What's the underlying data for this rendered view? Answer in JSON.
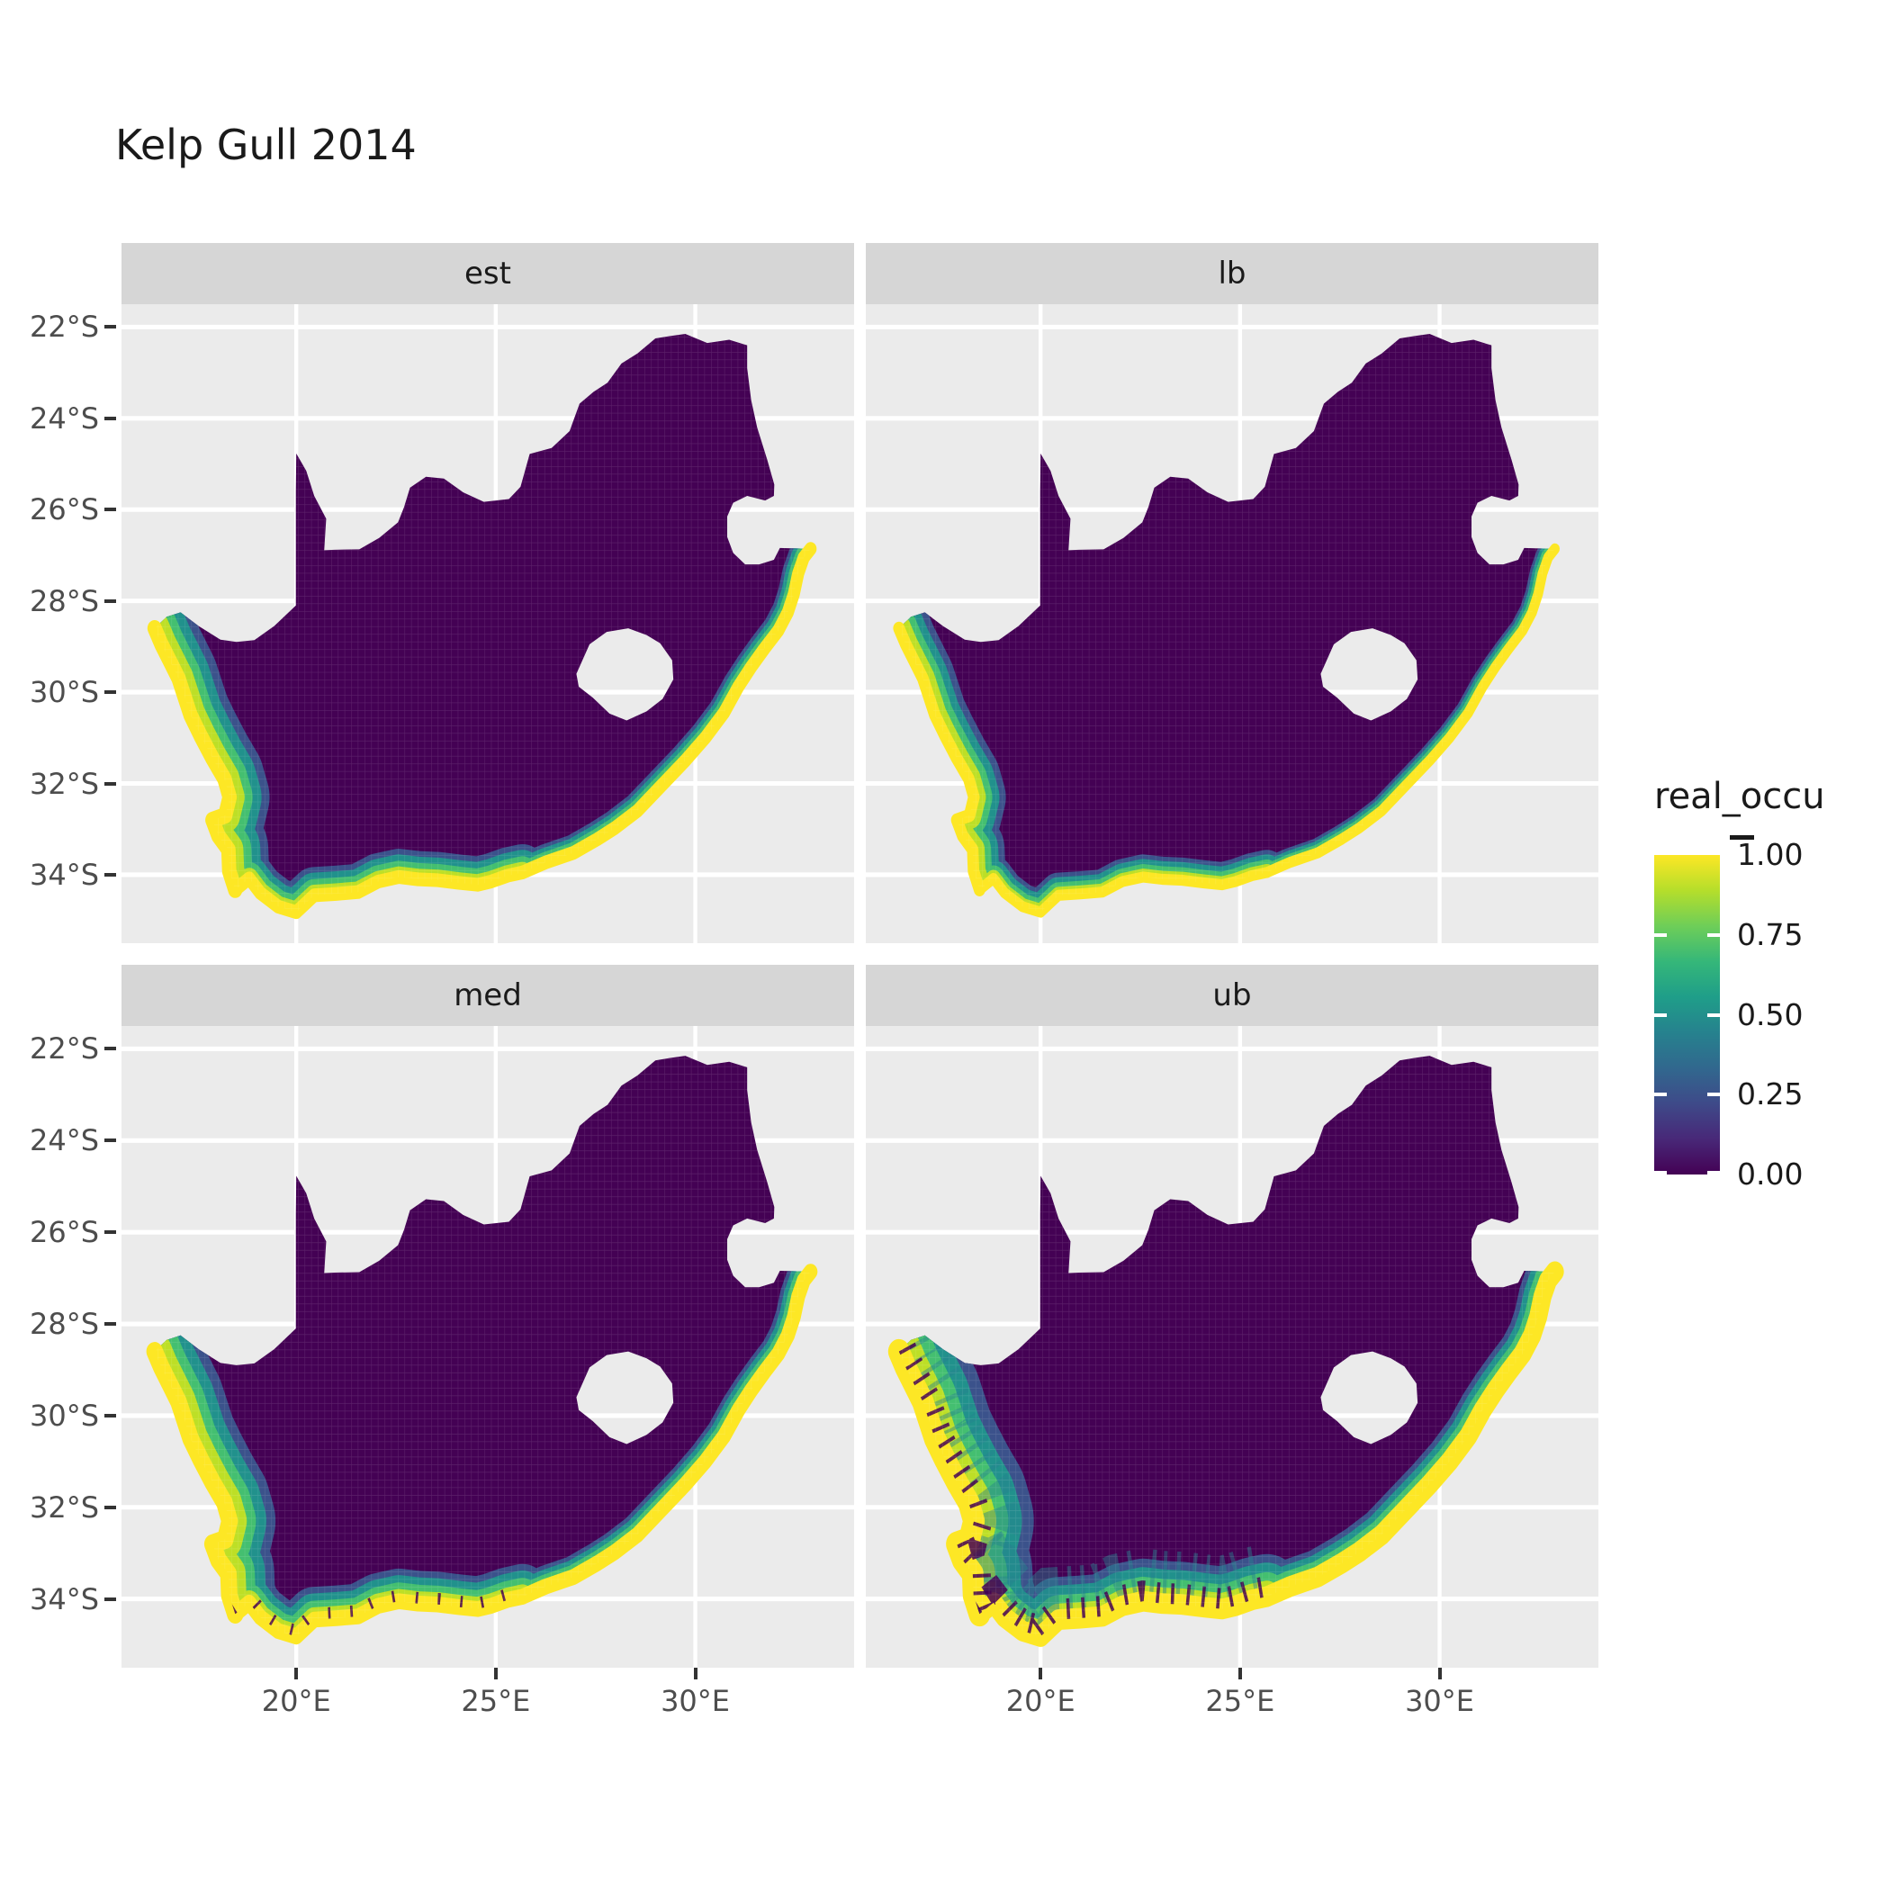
{
  "title": "Kelp Gull 2014",
  "facets": [
    {
      "label": "est",
      "band_scale": 1.0,
      "speckle": "none"
    },
    {
      "label": "lb",
      "band_scale": 0.8,
      "speckle": "none"
    },
    {
      "label": "med",
      "band_scale": 1.15,
      "speckle": "light"
    },
    {
      "label": "ub",
      "band_scale": 1.5,
      "speckle": "heavy"
    }
  ],
  "y_axis": {
    "labels": [
      "22°S",
      "24°S",
      "26°S",
      "28°S",
      "30°S",
      "32°S",
      "34°S"
    ],
    "values": [
      22,
      24,
      26,
      28,
      30,
      32,
      34
    ]
  },
  "x_axis": {
    "labels": [
      "20°E",
      "25°E",
      "30°E"
    ],
    "values": [
      20,
      25,
      30
    ]
  },
  "legend": {
    "title": "real_occu",
    "labels": [
      "1.00",
      "0.75",
      "0.50",
      "0.25",
      "0.00"
    ],
    "positions": [
      1.0,
      0.75,
      0.5,
      0.25,
      0.0
    ],
    "side_tick_positions": [
      0.75,
      0.5,
      0.25,
      0.005
    ],
    "gradient": [
      "#440154",
      "#482878",
      "#3e4a89",
      "#31688e",
      "#26828e",
      "#1f9e89",
      "#35b779",
      "#6ece58",
      "#b5de2b",
      "#fde725"
    ]
  },
  "colors": {
    "panel_bg": "#ebebeb",
    "strip_bg": "#d6d6d6",
    "grid": "#ffffff",
    "axis_text": "#4d4d4d",
    "tick_mark": "#333333",
    "land_fill": "#440154",
    "cell_line": "rgba(255,255,255,0.13)",
    "band_layers": [
      "#3b528b",
      "#21918c",
      "#44bf70",
      "#bddf26"
    ],
    "band_top": "#fde725",
    "speckle_teal": "#26828e"
  },
  "chart_data": {
    "type": "heatmap",
    "title": "Kelp Gull 2014",
    "facet_variable_values": [
      "est",
      "lb",
      "med",
      "ub"
    ],
    "legend_variable": "real_occu",
    "value_range": [
      0,
      1
    ],
    "legend_breaks": [
      0,
      0.25,
      0.5,
      0.75,
      1.0
    ],
    "palette": "viridis",
    "region": "South Africa (Lesotho hole and Eswatini notch excluded)",
    "x_axis_range_lon_e": [
      15.62,
      33.98
    ],
    "y_axis_range_lat": [
      -35.5,
      -21.5
    ],
    "grid_lon_lines": [
      20,
      25,
      30
    ],
    "grid_lat_lines": [
      -22,
      -24,
      -26,
      -28,
      -30,
      -32,
      -34
    ],
    "raster_cell_size_deg": 0.167,
    "pattern": {
      "interior_value": 0.0,
      "coastal_value": 1.0,
      "description": "Occupancy near 1 (yellow) in a band along the coast, grading inland through green, teal and blue to near 0 (dark purple) across the whole interior; band widest on the west coast and around the Cape, thinnest on the east coast.",
      "facet_band_scale": {
        "est": 1.0,
        "lb": 0.8,
        "med": 1.15,
        "ub": 1.5
      },
      "segment_inland_extent_deg": {
        "west": 1.0,
        "south": 0.62,
        "east": 0.4
      },
      "speckled_facets": [
        "med",
        "ub"
      ]
    },
    "coast_end_index": 49,
    "coast_segments": {
      "west": [
        0,
        15
      ],
      "south": [
        15,
        31
      ],
      "east": [
        31,
        49
      ]
    },
    "outline": [
      [
        16.45,
        -28.6
      ],
      [
        16.62,
        -28.95
      ],
      [
        16.85,
        -29.35
      ],
      [
        17.05,
        -29.7
      ],
      [
        17.2,
        -30.1
      ],
      [
        17.35,
        -30.5
      ],
      [
        17.6,
        -30.95
      ],
      [
        17.9,
        -31.45
      ],
      [
        18.2,
        -31.9
      ],
      [
        18.33,
        -32.3
      ],
      [
        18.22,
        -32.7
      ],
      [
        17.9,
        -32.8
      ],
      [
        18.05,
        -33.15
      ],
      [
        18.3,
        -33.45
      ],
      [
        18.32,
        -33.92
      ],
      [
        18.47,
        -34.33
      ],
      [
        18.82,
        -34.08
      ],
      [
        19.1,
        -34.4
      ],
      [
        19.55,
        -34.7
      ],
      [
        20.0,
        -34.82
      ],
      [
        20.45,
        -34.45
      ],
      [
        21.0,
        -34.42
      ],
      [
        21.55,
        -34.38
      ],
      [
        22.05,
        -34.15
      ],
      [
        22.57,
        -34.05
      ],
      [
        23.05,
        -34.1
      ],
      [
        23.55,
        -34.12
      ],
      [
        24.1,
        -34.18
      ],
      [
        24.55,
        -34.22
      ],
      [
        24.88,
        -34.15
      ],
      [
        25.3,
        -34.02
      ],
      [
        25.67,
        -33.95
      ],
      [
        26.25,
        -33.73
      ],
      [
        26.95,
        -33.52
      ],
      [
        27.55,
        -33.22
      ],
      [
        27.98,
        -32.98
      ],
      [
        28.55,
        -32.6
      ],
      [
        29.15,
        -32.05
      ],
      [
        29.75,
        -31.5
      ],
      [
        30.25,
        -31.0
      ],
      [
        30.72,
        -30.45
      ],
      [
        31.08,
        -29.88
      ],
      [
        31.4,
        -29.45
      ],
      [
        31.73,
        -29.05
      ],
      [
        32.08,
        -28.65
      ],
      [
        32.32,
        -28.25
      ],
      [
        32.47,
        -27.85
      ],
      [
        32.58,
        -27.4
      ],
      [
        32.72,
        -27.05
      ],
      [
        32.89,
        -26.86
      ],
      [
        32.12,
        -26.84
      ],
      [
        31.97,
        -27.1
      ],
      [
        31.6,
        -27.2
      ],
      [
        31.25,
        -27.2
      ],
      [
        30.95,
        -26.95
      ],
      [
        30.8,
        -26.6
      ],
      [
        30.8,
        -26.15
      ],
      [
        30.95,
        -25.85
      ],
      [
        31.3,
        -25.7
      ],
      [
        31.75,
        -25.8
      ],
      [
        31.97,
        -25.7
      ],
      [
        31.98,
        -25.45
      ],
      [
        31.8,
        -24.9
      ],
      [
        31.55,
        -24.2
      ],
      [
        31.4,
        -23.6
      ],
      [
        31.3,
        -22.9
      ],
      [
        31.3,
        -22.4
      ],
      [
        30.85,
        -22.28
      ],
      [
        30.3,
        -22.35
      ],
      [
        29.75,
        -22.15
      ],
      [
        29.35,
        -22.2
      ],
      [
        29.0,
        -22.25
      ],
      [
        28.55,
        -22.58
      ],
      [
        28.15,
        -22.8
      ],
      [
        27.8,
        -23.22
      ],
      [
        27.45,
        -23.42
      ],
      [
        27.1,
        -23.68
      ],
      [
        26.85,
        -24.28
      ],
      [
        26.4,
        -24.65
      ],
      [
        25.85,
        -24.78
      ],
      [
        25.62,
        -25.5
      ],
      [
        25.33,
        -25.77
      ],
      [
        24.7,
        -25.83
      ],
      [
        24.18,
        -25.62
      ],
      [
        23.7,
        -25.32
      ],
      [
        23.25,
        -25.28
      ],
      [
        22.85,
        -25.52
      ],
      [
        22.7,
        -25.95
      ],
      [
        22.55,
        -26.28
      ],
      [
        22.08,
        -26.62
      ],
      [
        21.58,
        -26.87
      ],
      [
        20.95,
        -26.88
      ],
      [
        20.7,
        -26.89
      ],
      [
        20.75,
        -26.2
      ],
      [
        20.45,
        -25.7
      ],
      [
        20.25,
        -25.15
      ],
      [
        20.0,
        -24.77
      ],
      [
        19.99,
        -25.6
      ],
      [
        19.99,
        -26.4
      ],
      [
        19.99,
        -27.2
      ],
      [
        19.99,
        -28.1
      ],
      [
        19.45,
        -28.55
      ],
      [
        18.95,
        -28.86
      ],
      [
        18.5,
        -28.9
      ],
      [
        18.1,
        -28.85
      ],
      [
        17.55,
        -28.55
      ],
      [
        17.1,
        -28.25
      ],
      [
        16.75,
        -28.35
      ]
    ],
    "lesotho_hole": [
      [
        27.02,
        -29.6
      ],
      [
        27.35,
        -28.95
      ],
      [
        27.78,
        -28.68
      ],
      [
        28.32,
        -28.6
      ],
      [
        28.78,
        -28.75
      ],
      [
        29.12,
        -28.93
      ],
      [
        29.42,
        -29.3
      ],
      [
        29.45,
        -29.72
      ],
      [
        29.18,
        -30.15
      ],
      [
        28.78,
        -30.42
      ],
      [
        28.28,
        -30.62
      ],
      [
        27.85,
        -30.47
      ],
      [
        27.43,
        -30.12
      ],
      [
        27.08,
        -29.88
      ]
    ]
  }
}
